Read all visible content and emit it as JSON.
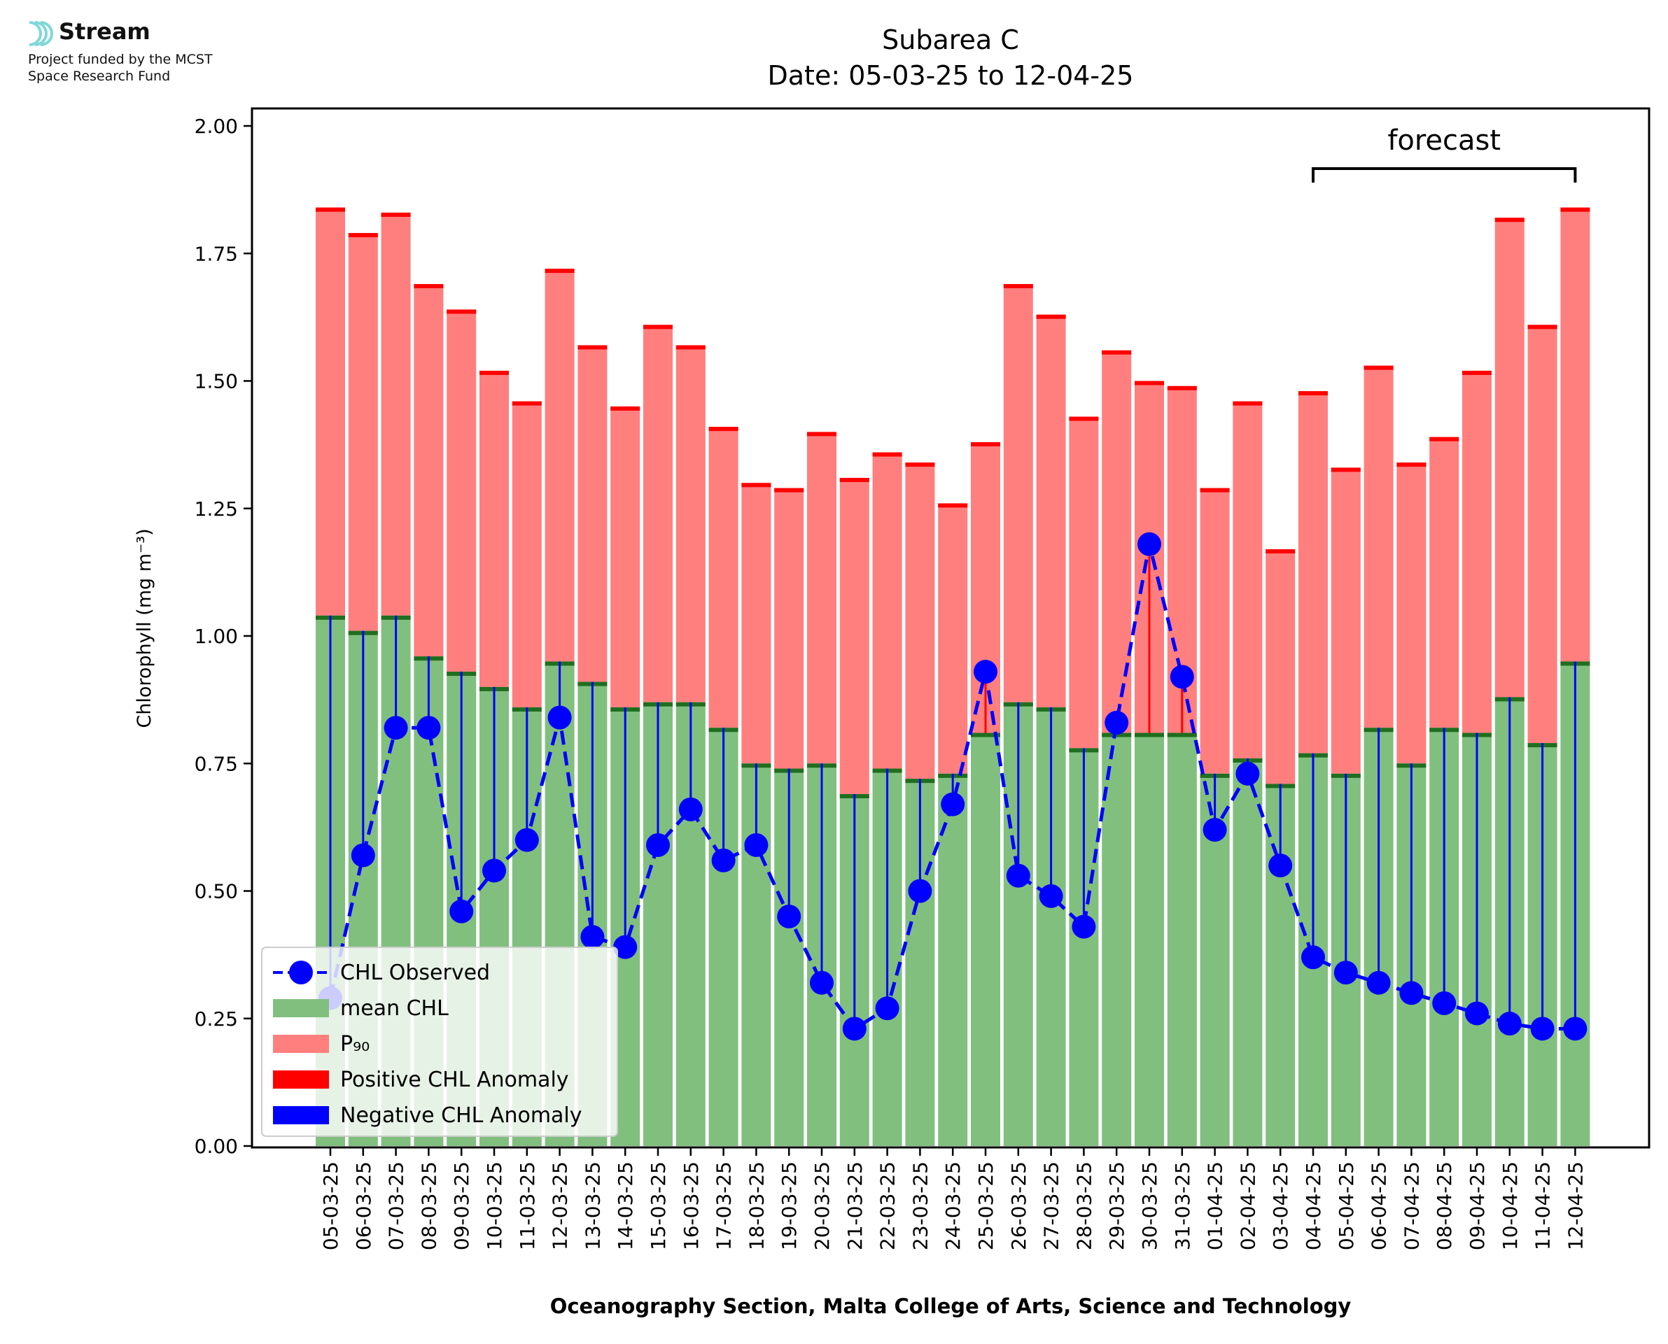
{
  "logo": {
    "brand": "Stream",
    "line1": "Project funded by the MCST",
    "line2": "Space Research Fund"
  },
  "colors": {
    "mean": "#81bf7f",
    "mean_cap": "#1f6e1f",
    "p90": "#ff7f7f",
    "p90_cap": "#ff0000",
    "observed": "#0000ff",
    "pos_anom": "#ff0000",
    "neg_anom": "#0000ff",
    "logo_accent": "#7fd8d8"
  },
  "chart_data": {
    "type": "bar",
    "title": "Subarea C",
    "subtitle": "Date: 05-03-25 to 12-04-25",
    "xlabel": "Oceanography Section, Malta College of Arts, Science and Technology",
    "ylabel": "Chlorophyll (mg m⁻³)",
    "ylim": [
      0,
      2.0
    ],
    "yticks": [
      "0.00",
      "0.25",
      "0.50",
      "0.75",
      "1.00",
      "1.25",
      "1.50",
      "1.75",
      "2.00"
    ],
    "categories": [
      "05-03-25",
      "06-03-25",
      "07-03-25",
      "08-03-25",
      "09-03-25",
      "10-03-25",
      "11-03-25",
      "12-03-25",
      "13-03-25",
      "14-03-25",
      "15-03-25",
      "16-03-25",
      "17-03-25",
      "18-03-25",
      "19-03-25",
      "20-03-25",
      "21-03-25",
      "22-03-25",
      "23-03-25",
      "24-03-25",
      "25-03-25",
      "26-03-25",
      "27-03-25",
      "28-03-25",
      "29-03-25",
      "30-03-25",
      "31-03-25",
      "01-04-25",
      "02-04-25",
      "03-04-25",
      "04-04-25",
      "05-04-25",
      "06-04-25",
      "07-04-25",
      "08-04-25",
      "09-04-25",
      "10-04-25",
      "11-04-25",
      "12-04-25"
    ],
    "series": [
      {
        "name": "mean CHL",
        "values": [
          1.04,
          1.01,
          1.04,
          0.96,
          0.93,
          0.9,
          0.86,
          0.95,
          0.91,
          0.86,
          0.87,
          0.87,
          0.82,
          0.75,
          0.74,
          0.75,
          0.69,
          0.74,
          0.72,
          0.73,
          0.81,
          0.87,
          0.86,
          0.78,
          0.81,
          0.81,
          0.81,
          0.73,
          0.76,
          0.71,
          0.77,
          0.73,
          0.82,
          0.75,
          0.82,
          0.81,
          0.88,
          0.79,
          0.95
        ]
      },
      {
        "name": "P90",
        "values": [
          1.84,
          1.79,
          1.83,
          1.69,
          1.64,
          1.52,
          1.46,
          1.72,
          1.57,
          1.45,
          1.61,
          1.57,
          1.41,
          1.3,
          1.29,
          1.4,
          1.31,
          1.36,
          1.34,
          1.26,
          1.38,
          1.69,
          1.63,
          1.43,
          1.56,
          1.5,
          1.49,
          1.29,
          1.46,
          1.17,
          1.48,
          1.33,
          1.53,
          1.34,
          1.39,
          1.52,
          1.82,
          1.61,
          1.84
        ]
      },
      {
        "name": "CHL Observed",
        "values": [
          0.29,
          0.57,
          0.82,
          0.82,
          0.46,
          0.54,
          0.6,
          0.84,
          0.41,
          0.39,
          0.59,
          0.66,
          0.56,
          0.59,
          0.45,
          0.32,
          0.23,
          0.27,
          0.5,
          0.67,
          0.93,
          0.53,
          0.49,
          0.43,
          0.83,
          1.18,
          0.92,
          0.62,
          0.73,
          0.55,
          0.37,
          0.34,
          0.32,
          0.3,
          0.28,
          0.26,
          0.24,
          0.23,
          0.23
        ]
      }
    ],
    "legend": {
      "placement": "lower-left",
      "entries": [
        "CHL Observed",
        "mean CHL",
        "P₉₀",
        "Positive CHL Anomaly",
        "Negative CHL Anomaly"
      ]
    },
    "annotations": [
      {
        "text": "forecast",
        "from": "04-04-25",
        "to": "12-04-25"
      }
    ],
    "grid": false
  }
}
